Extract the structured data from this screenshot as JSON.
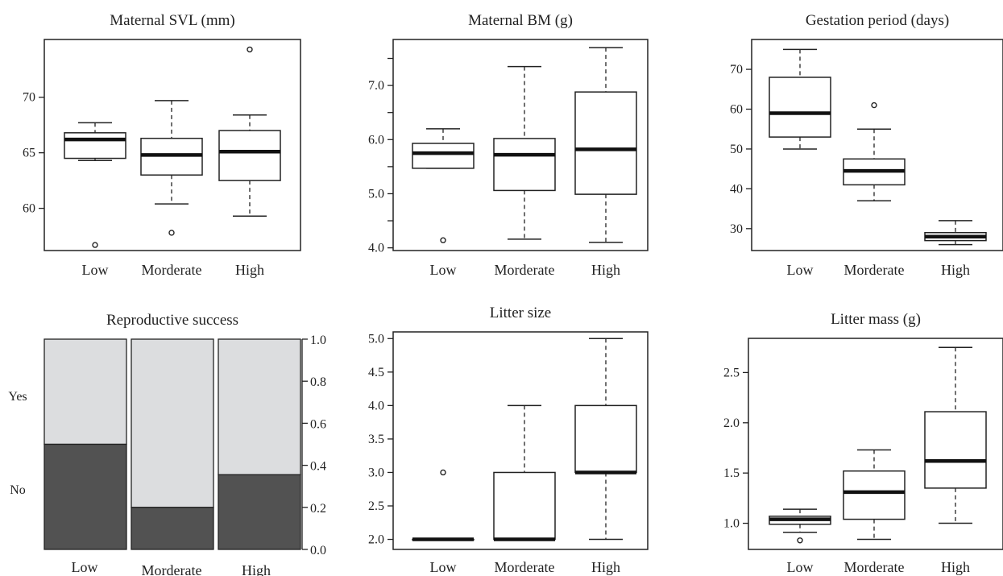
{
  "chart_data": [
    {
      "type": "boxplot",
      "title": "Maternal SVL (mm)",
      "categories": [
        "Low",
        "Morderate",
        "High"
      ],
      "ylim": [
        56.2,
        75.2
      ],
      "yticks": [
        60,
        65,
        70
      ],
      "ytick_labels": [
        "60",
        "65",
        "70"
      ],
      "boxes": [
        {
          "min": 64.3,
          "q1": 64.5,
          "median": 66.2,
          "q3": 66.8,
          "max": 67.7,
          "outliers": [
            56.7
          ]
        },
        {
          "min": 60.4,
          "q1": 63.0,
          "median": 64.8,
          "q3": 66.3,
          "max": 69.7,
          "outliers": [
            57.8
          ]
        },
        {
          "min": 59.3,
          "q1": 62.5,
          "median": 65.1,
          "q3": 67.0,
          "max": 68.4,
          "outliers": [
            74.3
          ]
        }
      ]
    },
    {
      "type": "boxplot",
      "title": "Maternal BM (g)",
      "categories": [
        "Low",
        "Morderate",
        "High"
      ],
      "ylim": [
        3.95,
        7.85
      ],
      "yticks": [
        4.0,
        4.5,
        5.0,
        5.5,
        6.0,
        6.5,
        7.0,
        7.5
      ],
      "ytick_labels": [
        "4.0",
        "",
        "5.0",
        "",
        "6.0",
        "",
        "7.0",
        ""
      ],
      "boxes": [
        {
          "min": 5.47,
          "q1": 5.47,
          "median": 5.75,
          "q3": 5.93,
          "max": 6.2,
          "outliers": [
            4.14
          ]
        },
        {
          "min": 4.16,
          "q1": 5.06,
          "median": 5.72,
          "q3": 6.02,
          "max": 7.35,
          "outliers": []
        },
        {
          "min": 4.1,
          "q1": 4.99,
          "median": 5.82,
          "q3": 6.88,
          "max": 7.7,
          "outliers": []
        }
      ]
    },
    {
      "type": "boxplot",
      "title": "Gestation period (days)",
      "categories": [
        "Low",
        "Morderate",
        "High"
      ],
      "ylim": [
        24.5,
        77.5
      ],
      "yticks": [
        30,
        40,
        50,
        60,
        70
      ],
      "ytick_labels": [
        "30",
        "40",
        "50",
        "60",
        "70"
      ],
      "boxes": [
        {
          "min": 50,
          "q1": 53,
          "median": 59,
          "q3": 68,
          "max": 75,
          "outliers": []
        },
        {
          "min": 37,
          "q1": 41,
          "median": 44.5,
          "q3": 47.5,
          "max": 55,
          "outliers": [
            61
          ]
        },
        {
          "min": 26,
          "q1": 27,
          "median": 28,
          "q3": 29,
          "max": 32,
          "outliers": []
        }
      ]
    },
    {
      "type": "mosaic",
      "title": "Reproductive success",
      "categories": [
        "Low",
        "Morderate",
        "High"
      ],
      "row_labels": [
        "Yes",
        "No"
      ],
      "no_fraction": [
        0.5,
        0.2,
        0.355
      ],
      "ylim": [
        0,
        1
      ],
      "yticks": [
        0,
        0.2,
        0.4,
        0.6,
        0.8,
        1.0
      ],
      "ytick_labels": [
        "0.0",
        "0.2",
        "0.4",
        "0.6",
        "0.8",
        "1.0"
      ],
      "colors": {
        "yes": "#dcdddf",
        "no": "#525252"
      }
    },
    {
      "type": "boxplot",
      "title": "Litter size",
      "categories": [
        "Low",
        "Morderate",
        "High"
      ],
      "ylim": [
        1.85,
        5.1
      ],
      "yticks": [
        2.0,
        2.5,
        3.0,
        3.5,
        4.0,
        4.5,
        5.0
      ],
      "ytick_labels": [
        "2.0",
        "2.5",
        "3.0",
        "3.5",
        "4.0",
        "4.5",
        "5.0"
      ],
      "boxes": [
        {
          "min": 2,
          "q1": 2,
          "median": 2,
          "q3": 2,
          "max": 2,
          "outliers": [
            3
          ]
        },
        {
          "min": 2,
          "q1": 2,
          "median": 2,
          "q3": 3,
          "max": 4,
          "outliers": []
        },
        {
          "min": 2,
          "q1": 3,
          "median": 3,
          "q3": 4,
          "max": 5,
          "outliers": []
        }
      ]
    },
    {
      "type": "boxplot",
      "title": "Litter mass (g)",
      "categories": [
        "Low",
        "Morderate",
        "High"
      ],
      "ylim": [
        0.74,
        2.84
      ],
      "yticks": [
        1.0,
        1.5,
        2.0,
        2.5
      ],
      "ytick_labels": [
        "1.0",
        "1.5",
        "2.0",
        "2.5"
      ],
      "boxes": [
        {
          "min": 0.91,
          "q1": 0.99,
          "median": 1.04,
          "q3": 1.07,
          "max": 1.14,
          "outliers": [
            0.83
          ]
        },
        {
          "min": 0.84,
          "q1": 1.04,
          "median": 1.31,
          "q3": 1.52,
          "max": 1.73,
          "outliers": []
        },
        {
          "min": 1.0,
          "q1": 1.35,
          "median": 1.62,
          "q3": 2.11,
          "max": 2.75,
          "outliers": []
        }
      ]
    }
  ]
}
